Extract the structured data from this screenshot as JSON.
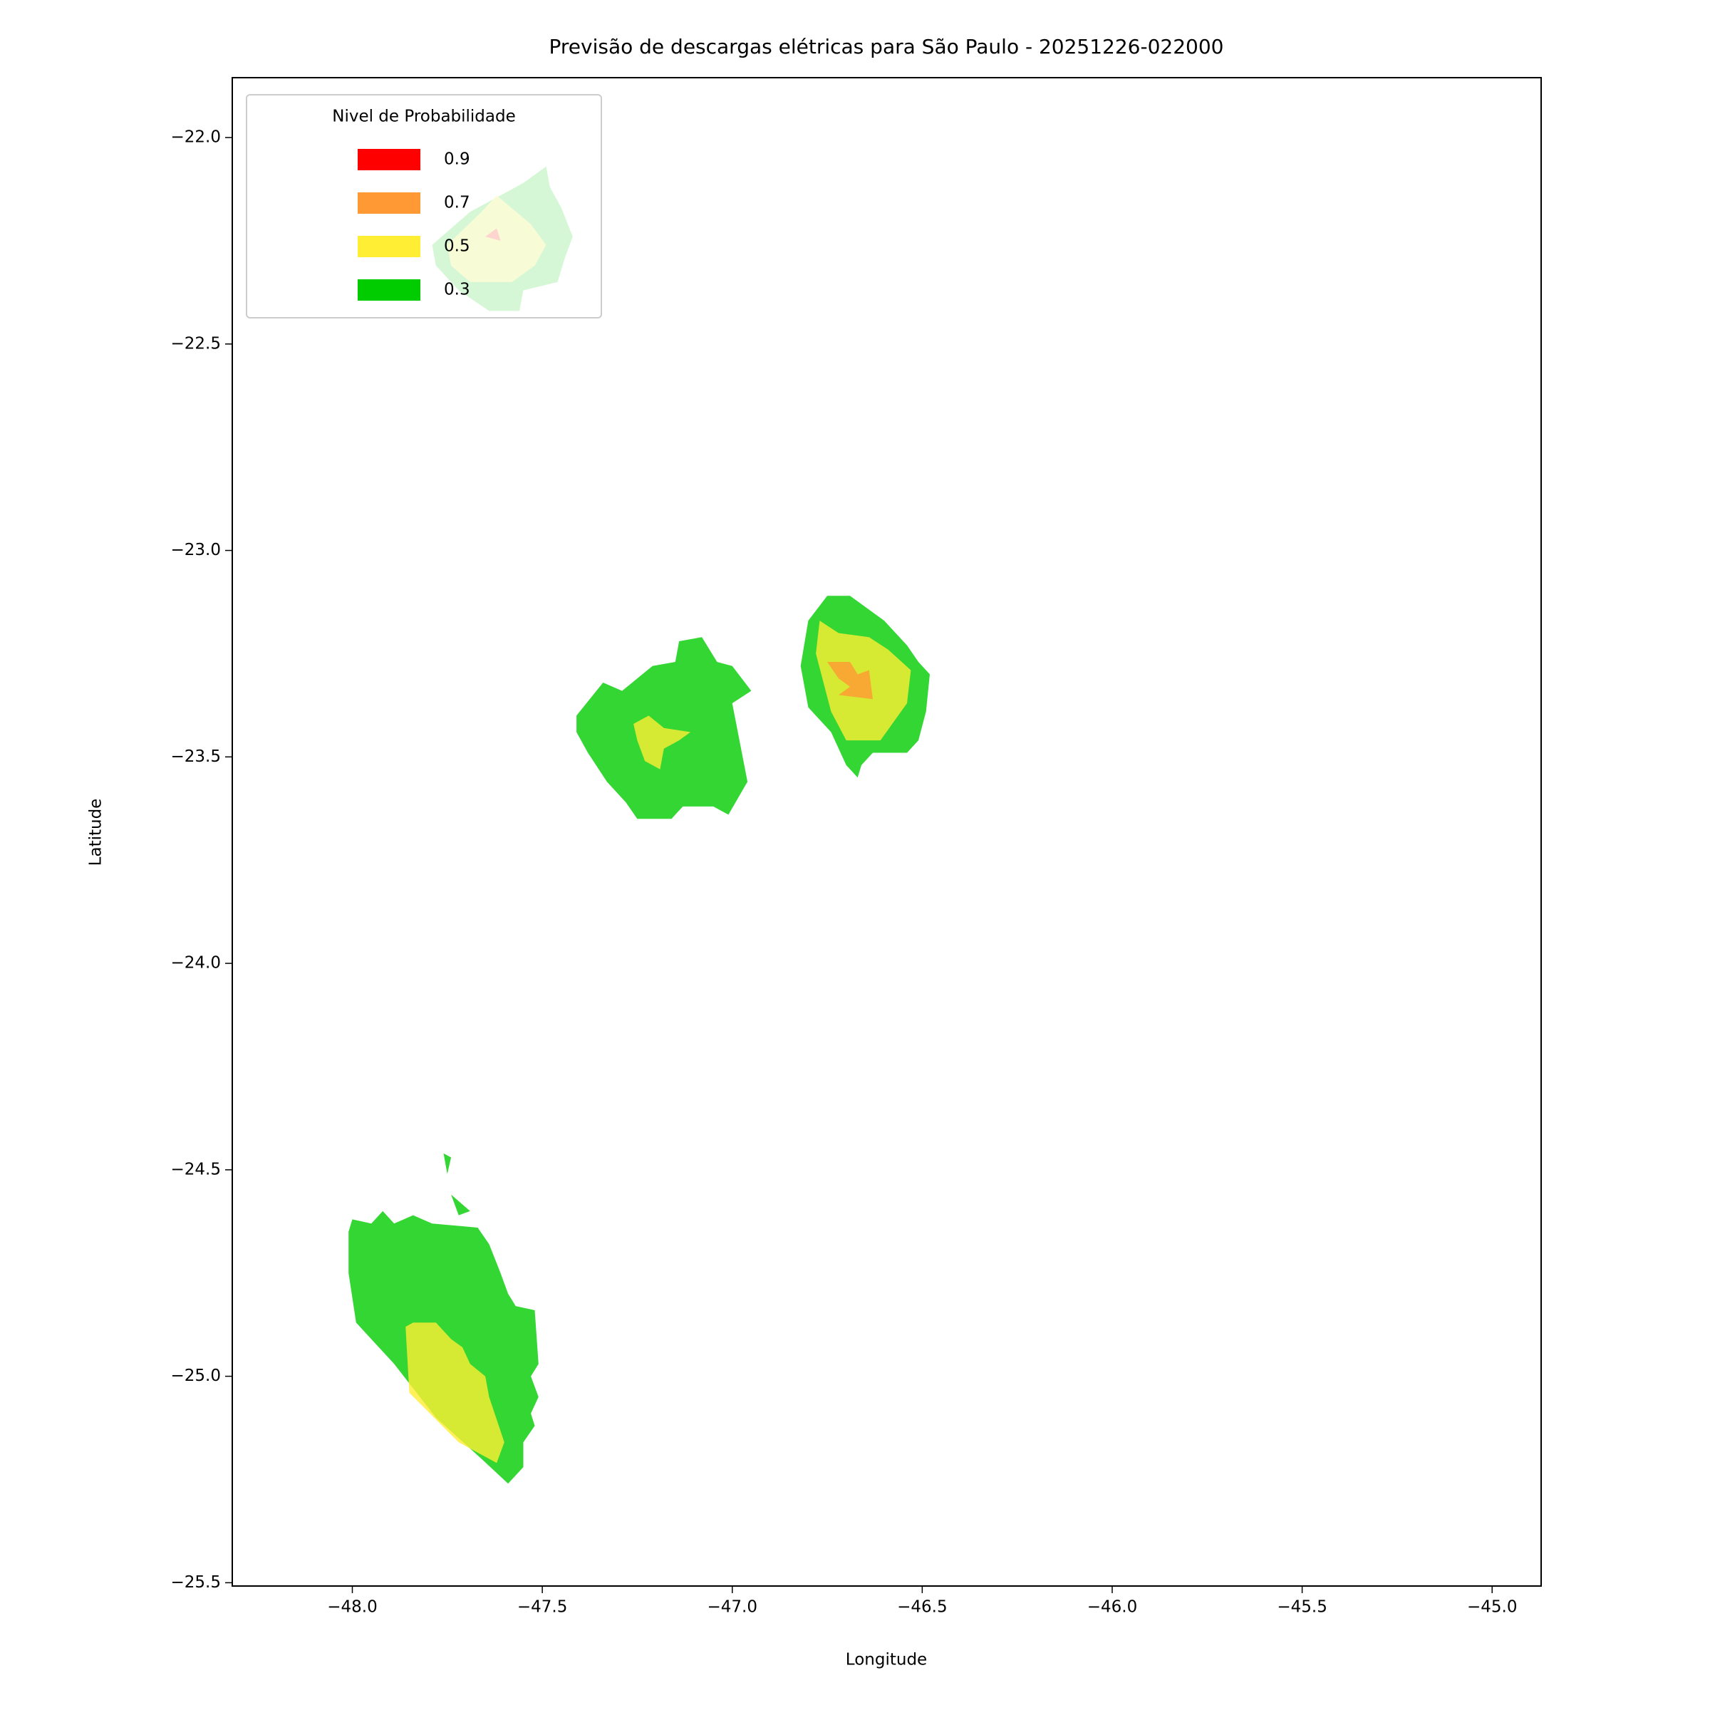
{
  "chart_data": {
    "type": "contour",
    "title": "Previsão de descargas elétricas para São Paulo - 20251226-022000",
    "xlabel": "Longitude",
    "ylabel": "Latitude",
    "legend_title": "Nivel de Probabilidade",
    "legend": "upper left",
    "alpha": 0.8,
    "xlim": [
      -48.316,
      -44.871
    ],
    "ylim": [
      -25.508,
      -21.855
    ],
    "xticks": [
      {
        "value": -48.0,
        "label": "−48.0"
      },
      {
        "value": -47.5,
        "label": "−47.5"
      },
      {
        "value": -47.0,
        "label": "−47.0"
      },
      {
        "value": -46.5,
        "label": "−46.5"
      },
      {
        "value": -46.0,
        "label": "−46.0"
      },
      {
        "value": -45.5,
        "label": "−45.5"
      },
      {
        "value": -45.0,
        "label": "−45.0"
      }
    ],
    "yticks": [
      {
        "value": -22.0,
        "label": "−22.0"
      },
      {
        "value": -22.5,
        "label": "−22.5"
      },
      {
        "value": -23.0,
        "label": "−23.0"
      },
      {
        "value": -23.5,
        "label": "−23.5"
      },
      {
        "value": -24.0,
        "label": "−24.0"
      },
      {
        "value": -24.5,
        "label": "−24.5"
      },
      {
        "value": -25.0,
        "label": "−25.0"
      },
      {
        "value": -25.5,
        "label": "−25.5"
      }
    ],
    "series": [
      {
        "name": "0.9",
        "color": "#ff0000",
        "regions": [
          {
            "x": [
              -47.65,
              -47.62,
              -47.61
            ],
            "y": [
              -22.24,
              -22.22,
              -22.25
            ]
          }
        ]
      },
      {
        "name": "0.7",
        "color": "#ff9933",
        "regions": [
          {
            "x": [
              -46.75,
              -46.69,
              -46.67,
              -46.64,
              -46.63,
              -46.72,
              -46.69,
              -46.72
            ],
            "y": [
              -23.27,
              -23.27,
              -23.3,
              -23.29,
              -23.36,
              -23.35,
              -23.33,
              -23.31
            ]
          }
        ]
      },
      {
        "name": "0.5",
        "color": "#ffee33",
        "regions": [
          {
            "x": [
              -47.26,
              -47.22,
              -47.18,
              -47.11,
              -47.14,
              -47.18,
              -47.19,
              -47.23,
              -47.25
            ],
            "y": [
              -23.42,
              -23.4,
              -23.43,
              -23.44,
              -23.46,
              -23.48,
              -23.53,
              -23.51,
              -23.46
            ]
          },
          {
            "x": [
              -46.77,
              -46.72,
              -46.64,
              -46.59,
              -46.53,
              -46.54,
              -46.61,
              -46.7,
              -46.74,
              -46.78
            ],
            "y": [
              -23.17,
              -23.2,
              -23.21,
              -23.24,
              -23.29,
              -23.37,
              -23.46,
              -23.46,
              -23.39,
              -23.25
            ]
          },
          {
            "x": [
              -47.86,
              -47.84,
              -47.78,
              -47.74,
              -47.71,
              -47.69,
              -47.65,
              -47.64,
              -47.6,
              -47.62,
              -47.72,
              -47.85
            ],
            "y": [
              -24.88,
              -24.87,
              -24.87,
              -24.91,
              -24.93,
              -24.97,
              -25.0,
              -25.05,
              -25.16,
              -25.21,
              -25.16,
              -25.04
            ]
          },
          {
            "x": [
              -47.75,
              -47.66,
              -47.62,
              -47.53,
              -47.49,
              -47.52,
              -47.58,
              -47.69,
              -47.74
            ],
            "y": [
              -22.26,
              -22.18,
              -22.14,
              -22.21,
              -22.26,
              -22.31,
              -22.35,
              -22.35,
              -22.31
            ]
          }
        ]
      },
      {
        "name": "0.3",
        "color": "#00cc00",
        "regions": [
          {
            "x": [
              -47.41,
              -47.34,
              -47.29,
              -47.21,
              -47.15,
              -47.14,
              -47.08,
              -47.04,
              -47.0,
              -46.95,
              -47.0,
              -46.96,
              -47.01,
              -47.05,
              -47.13,
              -47.16,
              -47.25,
              -47.28,
              -47.33,
              -47.38,
              -47.41
            ],
            "y": [
              -23.4,
              -23.32,
              -23.34,
              -23.28,
              -23.27,
              -23.22,
              -23.21,
              -23.27,
              -23.28,
              -23.34,
              -23.37,
              -23.56,
              -23.64,
              -23.62,
              -23.62,
              -23.65,
              -23.65,
              -23.61,
              -23.56,
              -23.49,
              -23.44
            ]
          },
          {
            "x": [
              -46.8,
              -46.75,
              -46.69,
              -46.6,
              -46.54,
              -46.51,
              -46.48,
              -46.49,
              -46.51,
              -46.54,
              -46.63,
              -46.66,
              -46.67,
              -46.7,
              -46.74,
              -46.8,
              -46.82
            ],
            "y": [
              -23.17,
              -23.11,
              -23.11,
              -23.17,
              -23.23,
              -23.27,
              -23.3,
              -23.39,
              -23.46,
              -23.49,
              -23.49,
              -23.52,
              -23.55,
              -23.52,
              -23.44,
              -23.38,
              -23.28
            ]
          },
          {
            "x": [
              -48.01,
              -48.0,
              -47.95,
              -47.92,
              -47.89,
              -47.84,
              -47.79,
              -47.67,
              -47.64,
              -47.61,
              -47.59,
              -47.57,
              -47.52,
              -47.51,
              -47.53,
              -47.51,
              -47.53,
              -47.52,
              -47.55,
              -47.55,
              -47.59,
              -47.66,
              -47.78,
              -47.89,
              -47.99,
              -48.0,
              -48.01
            ],
            "y": [
              -24.65,
              -24.62,
              -24.63,
              -24.6,
              -24.63,
              -24.61,
              -24.63,
              -24.64,
              -24.68,
              -24.75,
              -24.8,
              -24.83,
              -24.84,
              -24.97,
              -25.0,
              -25.05,
              -25.09,
              -25.12,
              -25.16,
              -25.22,
              -25.26,
              -25.2,
              -25.1,
              -24.97,
              -24.87,
              -24.81,
              -24.75
            ]
          },
          {
            "x": [
              -47.76,
              -47.74,
              -47.75
            ],
            "y": [
              -24.46,
              -24.47,
              -24.51
            ]
          },
          {
            "x": [
              -47.74,
              -47.69,
              -47.72
            ],
            "y": [
              -24.56,
              -24.6,
              -24.61
            ]
          },
          {
            "x": [
              -47.79,
              -47.74,
              -47.69,
              -47.61,
              -47.55,
              -47.49,
              -47.48,
              -47.45,
              -47.42,
              -47.44,
              -47.46,
              -47.55,
              -47.56,
              -47.64,
              -47.72,
              -47.78
            ],
            "y": [
              -22.26,
              -22.22,
              -22.18,
              -22.14,
              -22.11,
              -22.07,
              -22.12,
              -22.17,
              -22.24,
              -22.29,
              -22.35,
              -22.37,
              -22.42,
              -22.42,
              -22.37,
              -22.31
            ]
          }
        ]
      }
    ]
  }
}
